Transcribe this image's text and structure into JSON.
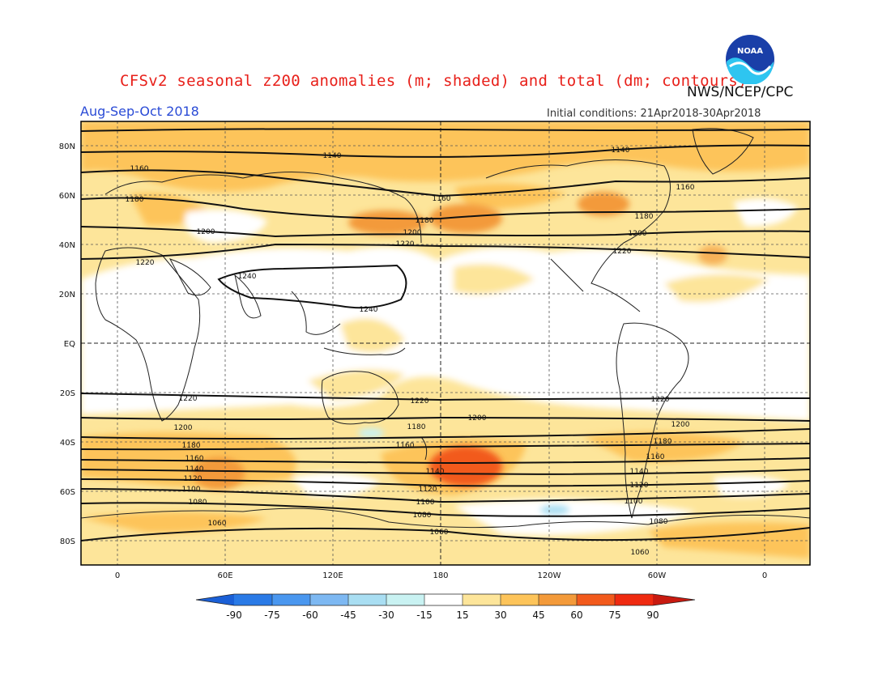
{
  "header": {
    "title": "CFSv2 seasonal z200 anomalies (m; shaded) and total (dm; contours)",
    "agency": "NWS/NCEP/CPC",
    "season": "Aug-Sep-Oct 2018",
    "initial_conditions": "Initial conditions: 21Apr2018-30Apr2018",
    "logo_text": "NOAA"
  },
  "map": {
    "lat_labels": [
      "80N",
      "60N",
      "40N",
      "20N",
      "EQ",
      "20S",
      "40S",
      "60S",
      "80S"
    ],
    "lon_labels": [
      "0",
      "60E",
      "120E",
      "180",
      "120W",
      "60W",
      "0"
    ]
  },
  "colorbar": {
    "labels": [
      "-90",
      "-75",
      "-60",
      "-45",
      "-30",
      "-15",
      "15",
      "30",
      "45",
      "60",
      "75",
      "90"
    ],
    "colors": [
      "#1a5fd6",
      "#2a7ae6",
      "#4a97ef",
      "#7db8f2",
      "#a9def2",
      "#c9f2f2",
      "#ffffff",
      "#fde59a",
      "#fdc45a",
      "#f39a3a",
      "#f25a1c",
      "#ef2a10",
      "#c81a10"
    ]
  },
  "contours": {
    "labels": [
      "1140",
      "1140",
      "1160",
      "1160",
      "1160",
      "1180",
      "1180",
      "1180",
      "1200",
      "1200",
      "1200",
      "1220",
      "1220",
      "1220",
      "1240",
      "1240",
      "1220",
      "1220",
      "1220",
      "1200",
      "1200",
      "1200",
      "1180",
      "1180",
      "1180",
      "1160",
      "1160",
      "1160",
      "1140",
      "1140",
      "1140",
      "1120",
      "1120",
      "1120",
      "1100",
      "1100",
      "1100",
      "1080",
      "1080",
      "1080",
      "1060",
      "1060",
      "1060"
    ]
  }
}
